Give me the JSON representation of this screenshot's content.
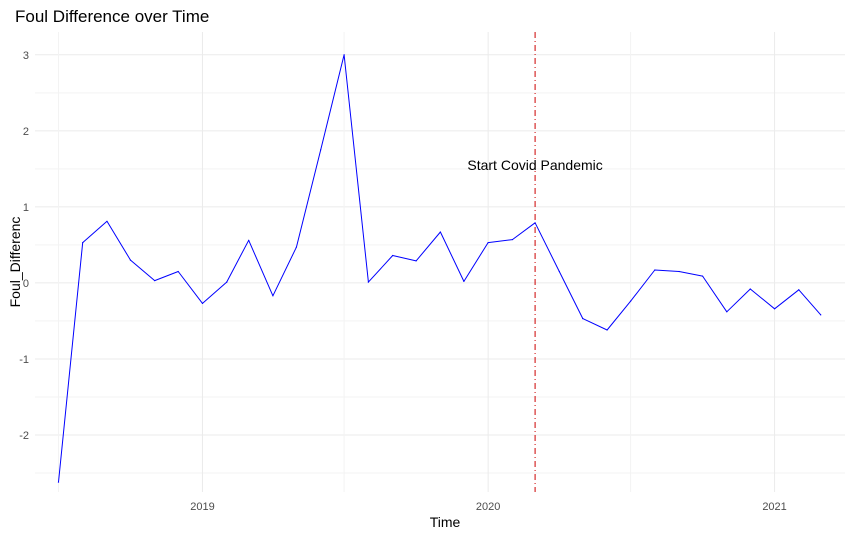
{
  "chart_data": {
    "type": "line",
    "title": "Foul Difference over Time",
    "xlabel": "Time",
    "ylabel": "Foul_Differenc",
    "x_ticks": [
      "2019",
      "2020",
      "2021"
    ],
    "y_ticks": [
      "-2",
      "-1",
      "0",
      "1",
      "2",
      "3"
    ],
    "xlim": [
      "2018-06-01",
      "2021-04-01"
    ],
    "ylim": [
      -2.75,
      3.3
    ],
    "grid": true,
    "series": [
      {
        "color": "#0000ff",
        "x": [
          "2018-07-01",
          "2018-08-01",
          "2018-09-01",
          "2018-10-01",
          "2018-11-01",
          "2018-12-01",
          "2019-01-01",
          "2019-02-01",
          "2019-03-01",
          "2019-04-01",
          "2019-05-01",
          "2019-06-01",
          "2019-07-01",
          "2019-08-01",
          "2019-09-01",
          "2019-10-01",
          "2019-11-01",
          "2019-12-01",
          "2020-01-01",
          "2020-02-01",
          "2020-03-01",
          "2020-04-01",
          "2020-05-01",
          "2020-06-01",
          "2020-07-01",
          "2020-08-01",
          "2020-09-01",
          "2020-10-01",
          "2020-11-01",
          "2020-12-01",
          "2021-01-01",
          "2021-02-01",
          "2021-03-01"
        ],
        "y": [
          -2.62,
          0.53,
          0.81,
          0.3,
          0.03,
          0.15,
          -0.27,
          0.01,
          0.56,
          -0.17,
          0.47,
          1.75,
          3.0,
          0.01,
          0.36,
          0.29,
          0.67,
          0.02,
          0.53,
          0.57,
          0.79,
          0.15,
          -0.47,
          -0.62,
          -0.24,
          0.17,
          0.15,
          0.09,
          -0.38,
          -0.08,
          -0.34,
          -0.09,
          -0.42
        ]
      }
    ],
    "annotations": [
      {
        "type": "vline",
        "x": "2020-03-01",
        "color": "#cc0000",
        "style": "dashdot"
      },
      {
        "type": "text",
        "text": "Start Covid Pandemic",
        "x": "2020-03-01",
        "y": 1.55
      }
    ]
  }
}
